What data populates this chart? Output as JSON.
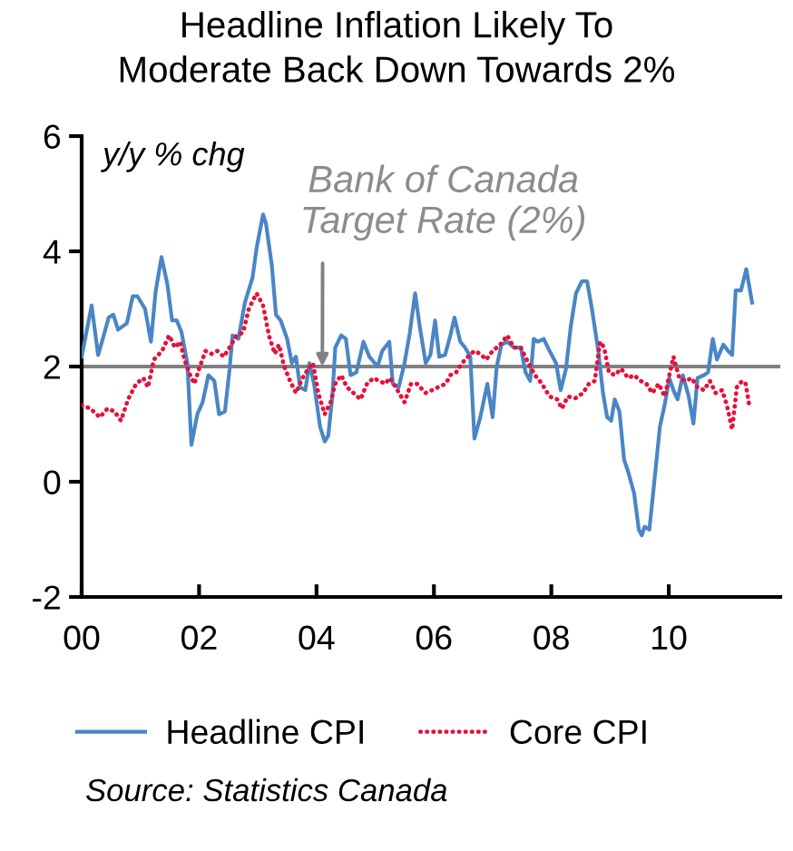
{
  "chart_data": {
    "type": "line",
    "title": "Headline Inflation Likely To Moderate Back Down Towards 2%",
    "ylabel": "y/y % chg",
    "xlim": [
      2000,
      2011.9
    ],
    "xticks": [
      {
        "value": 2000,
        "label": "00"
      },
      {
        "value": 2002,
        "label": "02"
      },
      {
        "value": 2004,
        "label": "04"
      },
      {
        "value": 2006,
        "label": "06"
      },
      {
        "value": 2008,
        "label": "08"
      },
      {
        "value": 2010,
        "label": "10"
      }
    ],
    "ylim": [
      -2,
      6
    ],
    "yticks": [
      -2,
      0,
      2,
      4,
      6
    ],
    "legend": "bottom",
    "ref_lines": [
      {
        "axis": "y",
        "value": 2,
        "color": "#808080"
      }
    ],
    "annotations": [
      {
        "text": "Bank of Canada Target Rate (2%)",
        "x": 2004.1,
        "y": 2
      },
      "Source: Statistics Canada"
    ],
    "series": [
      {
        "name": "Headline CPI",
        "color": "#4a86c5",
        "line_style": "solid",
        "x": [
          2000.0,
          2000.17,
          2000.28,
          2000.36,
          2000.46,
          2000.54,
          2000.62,
          2000.77,
          2000.87,
          2000.95,
          2001.08,
          2001.18,
          2001.26,
          2001.36,
          2001.46,
          2001.54,
          2001.62,
          2001.7,
          2001.8,
          2001.87,
          2001.97,
          2002.06,
          2002.16,
          2002.26,
          2002.34,
          2002.44,
          2002.52,
          2002.57,
          2002.67,
          2002.78,
          2002.91,
          2002.98,
          2003.09,
          2003.14,
          2003.24,
          2003.31,
          2003.39,
          2003.5,
          2003.58,
          2003.65,
          2003.72,
          2003.81,
          2003.88,
          2003.96,
          2004.06,
          2004.14,
          2004.2,
          2004.27,
          2004.32,
          2004.42,
          2004.5,
          2004.58,
          2004.68,
          2004.8,
          2004.9,
          2005.04,
          2005.12,
          2005.24,
          2005.3,
          2005.4,
          2005.5,
          2005.59,
          2005.68,
          2005.76,
          2005.86,
          2005.94,
          2006.02,
          2006.09,
          2006.19,
          2006.28,
          2006.35,
          2006.45,
          2006.53,
          2006.62,
          2006.69,
          2006.79,
          2006.91,
          2007.0,
          2007.07,
          2007.15,
          2007.25,
          2007.36,
          2007.48,
          2007.56,
          2007.64,
          2007.7,
          2007.77,
          2007.87,
          2007.97,
          2008.08,
          2008.16,
          2008.25,
          2008.33,
          2008.42,
          2008.52,
          2008.61,
          2008.69,
          2008.8,
          2008.88,
          2008.95,
          2009.02,
          2009.08,
          2009.16,
          2009.24,
          2009.31,
          2009.41,
          2009.49,
          2009.54,
          2009.59,
          2009.67,
          2009.75,
          2009.85,
          2009.93,
          2010.01,
          2010.08,
          2010.15,
          2010.24,
          2010.34,
          2010.42,
          2010.49,
          2010.6,
          2010.67,
          2010.75,
          2010.82,
          2010.93,
          2011.01,
          2011.08,
          2011.14,
          2011.23,
          2011.32,
          2011.42
        ],
        "values": [
          2.17,
          3.06,
          2.2,
          2.48,
          2.85,
          2.9,
          2.64,
          2.75,
          3.22,
          3.22,
          3.0,
          2.43,
          3.3,
          3.9,
          3.43,
          2.8,
          2.8,
          2.6,
          2.06,
          0.64,
          1.17,
          1.38,
          1.85,
          1.75,
          1.17,
          1.22,
          1.96,
          2.54,
          2.48,
          3.11,
          3.54,
          4.06,
          4.64,
          4.48,
          3.75,
          2.9,
          2.8,
          2.48,
          2.06,
          2.17,
          1.64,
          1.59,
          2.06,
          1.69,
          0.96,
          0.7,
          0.8,
          1.48,
          2.33,
          2.54,
          2.48,
          1.85,
          1.9,
          2.43,
          2.17,
          2.0,
          2.27,
          2.43,
          1.7,
          1.64,
          2.06,
          2.59,
          3.27,
          2.69,
          2.06,
          2.2,
          2.8,
          2.17,
          2.2,
          2.54,
          2.85,
          2.43,
          2.33,
          2.17,
          0.75,
          1.12,
          1.7,
          1.12,
          2.0,
          2.38,
          2.43,
          2.33,
          2.33,
          1.9,
          1.75,
          2.48,
          2.43,
          2.48,
          2.27,
          2.06,
          1.59,
          1.96,
          2.69,
          3.27,
          3.48,
          3.48,
          3.01,
          2.27,
          1.54,
          1.12,
          1.06,
          1.43,
          1.22,
          0.38,
          0.17,
          -0.2,
          -0.83,
          -0.93,
          -0.78,
          -0.83,
          -0.04,
          0.96,
          1.33,
          1.8,
          1.59,
          1.43,
          1.85,
          1.48,
          1.01,
          1.8,
          1.85,
          1.9,
          2.48,
          2.12,
          2.38,
          2.27,
          2.2,
          3.32,
          3.32,
          3.69,
          3.11
        ]
      },
      {
        "name": "Core CPI",
        "color": "#e8103a",
        "line_style": "dotted",
        "x": [
          2000.0,
          2000.15,
          2000.31,
          2000.44,
          2000.56,
          2000.67,
          2000.79,
          2000.93,
          2001.05,
          2001.13,
          2001.23,
          2001.37,
          2001.49,
          2001.59,
          2001.68,
          2001.75,
          2001.85,
          2001.92,
          2002.0,
          2002.11,
          2002.21,
          2002.31,
          2002.42,
          2002.52,
          2002.64,
          2002.75,
          2002.85,
          2002.98,
          2003.09,
          2003.19,
          2003.29,
          2003.36,
          2003.45,
          2003.55,
          2003.65,
          2003.76,
          2003.86,
          2003.94,
          2004.03,
          2004.14,
          2004.24,
          2004.32,
          2004.42,
          2004.52,
          2004.63,
          2004.75,
          2004.86,
          2004.97,
          2005.07,
          2005.17,
          2005.25,
          2005.35,
          2005.5,
          2005.61,
          2005.71,
          2005.86,
          2005.97,
          2006.07,
          2006.2,
          2006.28,
          2006.38,
          2006.48,
          2006.58,
          2006.69,
          2006.79,
          2006.89,
          2007.0,
          2007.13,
          2007.25,
          2007.36,
          2007.48,
          2007.58,
          2007.72,
          2007.84,
          2007.97,
          2008.1,
          2008.18,
          2008.28,
          2008.41,
          2008.54,
          2008.64,
          2008.74,
          2008.83,
          2008.9,
          2008.98,
          2009.08,
          2009.19,
          2009.31,
          2009.41,
          2009.52,
          2009.62,
          2009.72,
          2009.83,
          2009.93,
          2010.01,
          2010.08,
          2010.18,
          2010.29,
          2010.39,
          2010.49,
          2010.6,
          2010.7,
          2010.8,
          2010.91,
          2010.99,
          2011.08,
          2011.16,
          2011.25,
          2011.31,
          2011.37
        ],
        "values": [
          1.33,
          1.27,
          1.12,
          1.27,
          1.22,
          1.06,
          1.43,
          1.7,
          1.8,
          1.64,
          2.12,
          2.27,
          2.54,
          2.33,
          2.43,
          2.12,
          1.85,
          1.7,
          1.96,
          2.27,
          2.22,
          2.27,
          2.17,
          2.33,
          2.54,
          2.59,
          3.01,
          3.27,
          3.06,
          2.54,
          2.22,
          2.38,
          2.0,
          1.75,
          1.54,
          1.8,
          1.96,
          2.06,
          1.54,
          1.17,
          1.38,
          1.7,
          1.85,
          1.64,
          1.54,
          1.43,
          1.7,
          1.8,
          1.75,
          1.7,
          1.8,
          1.64,
          1.38,
          1.7,
          1.7,
          1.54,
          1.59,
          1.64,
          1.7,
          1.85,
          1.9,
          2.06,
          2.17,
          2.27,
          2.22,
          2.12,
          2.27,
          2.38,
          2.54,
          2.33,
          2.33,
          2.12,
          1.85,
          1.7,
          1.48,
          1.43,
          1.27,
          1.48,
          1.45,
          1.54,
          1.7,
          1.75,
          2.43,
          2.33,
          1.9,
          1.85,
          1.96,
          1.8,
          1.85,
          1.75,
          1.7,
          1.54,
          1.7,
          1.48,
          1.85,
          2.17,
          1.8,
          1.75,
          1.8,
          1.64,
          1.59,
          1.75,
          1.54,
          1.59,
          1.33,
          0.91,
          1.64,
          1.75,
          1.7,
          1.33
        ]
      }
    ]
  }
}
